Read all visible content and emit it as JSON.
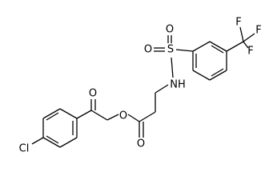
{
  "atoms": [
    "Cl",
    "O",
    "O",
    "O",
    "S",
    "O",
    "O",
    "NH",
    "F",
    "F",
    "F"
  ]
}
